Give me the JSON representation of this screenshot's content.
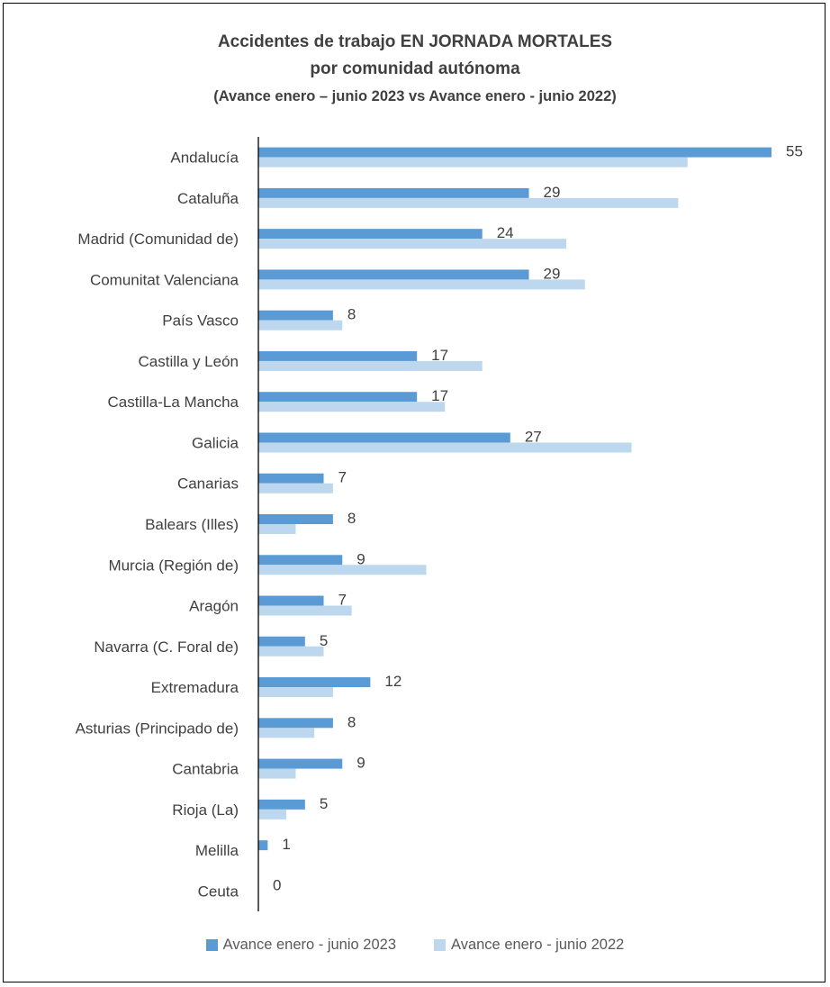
{
  "chart_data": {
    "type": "bar",
    "orientation": "horizontal",
    "title": "Accidentes de trabajo EN JORNADA MORTALES",
    "subtitle": "por comunidad autónoma",
    "subtitle2": "(Avance enero – junio 2023 vs Avance enero - junio 2022)",
    "categories": [
      "Andalucía",
      "Cataluña",
      "Madrid (Comunidad de)",
      "Comunitat Valenciana",
      "País Vasco",
      "Castilla y León",
      "Castilla-La Mancha",
      "Galicia",
      "Canarias",
      "Balears (Illes)",
      "Murcia (Región de)",
      "Aragón",
      "Navarra (C. Foral de)",
      "Extremadura",
      "Asturias (Principado de)",
      "Cantabria",
      "Rioja (La)",
      "Melilla",
      "Ceuta"
    ],
    "series": [
      {
        "name": "Avance enero - junio 2023",
        "color": "#5b9bd5",
        "values": [
          55,
          29,
          24,
          29,
          8,
          17,
          17,
          27,
          7,
          8,
          9,
          7,
          5,
          12,
          8,
          9,
          5,
          1,
          0
        ]
      },
      {
        "name": "Avance enero - junio 2022",
        "color": "#bdd7ee",
        "values": [
          46,
          45,
          33,
          35,
          9,
          24,
          20,
          40,
          8,
          4,
          18,
          10,
          7,
          8,
          6,
          4,
          3,
          0,
          0
        ]
      }
    ],
    "data_labels_series": 0,
    "xlim": [
      0,
      55
    ],
    "grid": false,
    "legend": "bottom"
  }
}
